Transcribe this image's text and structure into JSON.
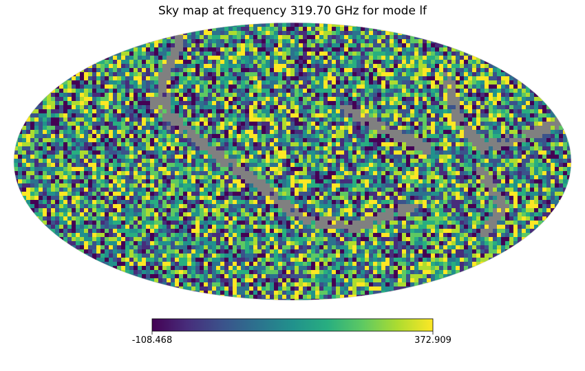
{
  "chart_data": {
    "type": "heatmap",
    "projection": "mollweide",
    "title": "Sky map at frequency 319.70 GHz for mode lf",
    "colormap": "viridis",
    "masked_color": "#808080",
    "colorbar": {
      "orientation": "horizontal",
      "min": -108.468,
      "max": 372.909,
      "min_label": "-108.468",
      "max_label": "372.909"
    },
    "grid": false
  }
}
